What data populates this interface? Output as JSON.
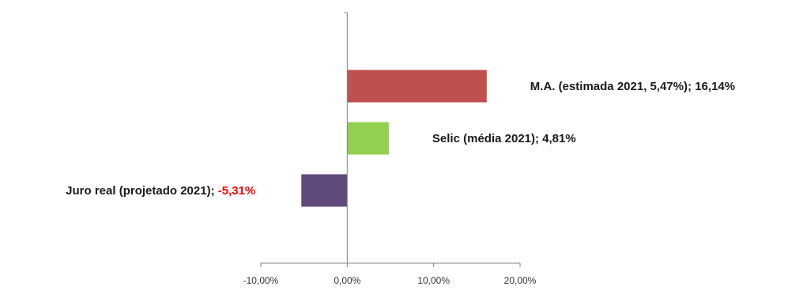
{
  "chart_data": {
    "type": "bar",
    "orientation": "horizontal",
    "title": "",
    "xlabel": "",
    "ylabel": "",
    "xlim": [
      -10,
      20
    ],
    "x_ticks": [
      -10,
      0,
      10,
      20
    ],
    "x_tick_labels": [
      "-10,00%",
      "0,00%",
      "10,00%",
      "20,00%"
    ],
    "grid": false,
    "legend": "none",
    "bars": [
      {
        "category": "M.A. (estimada 2021, 5,47%)",
        "value": 16.14,
        "value_label": "16,14%",
        "color": "#c0504d",
        "value_color": "#1a1a1a"
      },
      {
        "category": "Selic (média 2021)",
        "value": 4.81,
        "value_label": "4,81%",
        "color": "#92d050",
        "value_color": "#1a1a1a"
      },
      {
        "category": "Juro real (projetado 2021)",
        "value": -5.31,
        "value_label": "-5,31%",
        "color": "#604a7b",
        "value_color": "#ff0000"
      }
    ]
  }
}
